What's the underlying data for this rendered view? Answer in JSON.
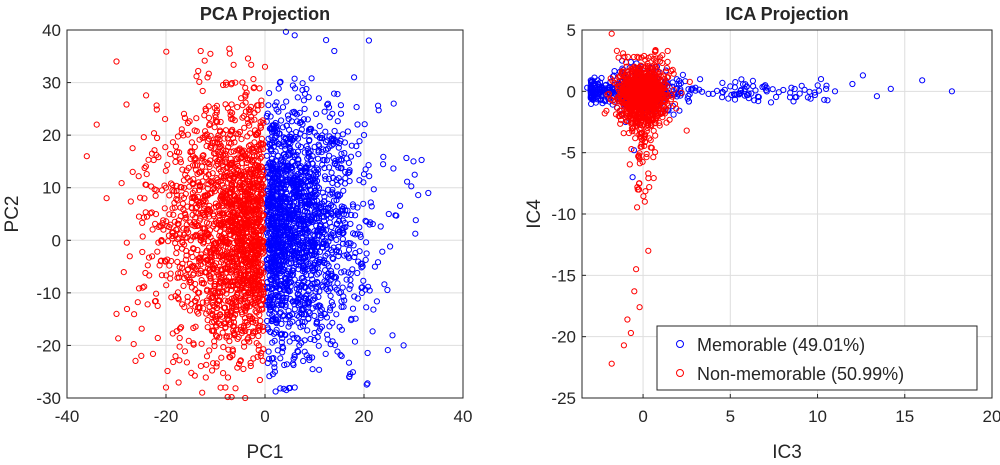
{
  "chart_data": [
    {
      "type": "scatter",
      "title": "PCA Projection",
      "xlabel": "PC1",
      "ylabel": "PC2",
      "xlim": [
        -40,
        40
      ],
      "ylim": [
        -30,
        40
      ],
      "xticks": [
        -40,
        -20,
        0,
        20,
        40
      ],
      "yticks": [
        -30,
        -20,
        -10,
        0,
        10,
        20,
        30,
        40
      ],
      "grid": true,
      "series": [
        {
          "name": "Memorable (49.01%)",
          "color": "#0000ff",
          "marker": "circle-open",
          "description_points": [
            [
              6,
              39
            ],
            [
              21,
              38
            ],
            [
              14,
              36
            ],
            [
              18,
              31
            ],
            [
              26,
              26
            ],
            [
              30,
              15
            ],
            [
              33,
              9
            ],
            [
              28,
              -20
            ],
            [
              17,
              -26
            ],
            [
              6,
              -28
            ],
            [
              2,
              -25
            ],
            [
              25,
              5
            ],
            [
              10,
              0
            ],
            [
              15,
              -10
            ],
            [
              20,
              20
            ],
            [
              8,
              25
            ],
            [
              3,
              30
            ]
          ]
        },
        {
          "name": "Non-memorable (50.99%)",
          "color": "#ff0000",
          "marker": "circle-open",
          "description_points": [
            [
              -30,
              34
            ],
            [
              -13,
              36
            ],
            [
              -34,
              22
            ],
            [
              -36,
              16
            ],
            [
              -32,
              8
            ],
            [
              -30,
              -14
            ],
            [
              -25,
              -22
            ],
            [
              -20,
              -28
            ],
            [
              -8,
              -28
            ],
            [
              -4,
              -30
            ],
            [
              -12,
              25
            ],
            [
              -20,
              10
            ],
            [
              -15,
              0
            ],
            [
              -10,
              -15
            ],
            [
              0,
              33
            ],
            [
              -6,
              30
            ]
          ]
        }
      ]
    },
    {
      "type": "scatter",
      "title": "ICA Projection",
      "xlabel": "IC3",
      "ylabel": "IC4",
      "xlim": [
        -3.5,
        20
      ],
      "ylim": [
        -25,
        5
      ],
      "xticks": [
        0,
        5,
        10,
        15,
        20
      ],
      "yticks": [
        -25,
        -20,
        -15,
        -10,
        -5,
        0,
        5
      ],
      "grid": true,
      "legend": "bottom-right",
      "series": [
        {
          "name": "Memorable (49.01%)",
          "color": "#0000ff",
          "marker": "circle-open",
          "description_points": [
            [
              17.7,
              0.0
            ],
            [
              16.0,
              0.9
            ],
            [
              14.2,
              0.2
            ],
            [
              13.4,
              -0.4
            ],
            [
              12.6,
              1.3
            ],
            [
              12.0,
              0.6
            ],
            [
              11.0,
              0.0
            ],
            [
              10.2,
              1.0
            ],
            [
              9.6,
              -0.6
            ],
            [
              8.5,
              0.3
            ],
            [
              7.0,
              0.5
            ],
            [
              6.0,
              -0.3
            ],
            [
              5.0,
              0.4
            ],
            [
              4.0,
              -0.2
            ],
            [
              3.0,
              0.3
            ],
            [
              -3.2,
              0.3
            ],
            [
              -2.6,
              0.9
            ],
            [
              -2.0,
              -0.6
            ],
            [
              -1.0,
              -2.5
            ],
            [
              0.5,
              -1.5
            ],
            [
              -0.6,
              -7.0
            ],
            [
              -1.2,
              2.5
            ],
            [
              0.8,
              2.0
            ]
          ]
        },
        {
          "name": "Non-memorable (50.99%)",
          "color": "#ff0000",
          "marker": "circle-open",
          "description_points": [
            [
              -1.8,
              4.7
            ],
            [
              -1.5,
              3.3
            ],
            [
              -0.3,
              -8.0
            ],
            [
              0.1,
              -9.0
            ],
            [
              0.3,
              -13.0
            ],
            [
              -0.4,
              -14.5
            ],
            [
              -0.5,
              -16.3
            ],
            [
              -0.2,
              -17.6
            ],
            [
              -0.9,
              -18.6
            ],
            [
              -0.7,
              -19.7
            ],
            [
              -1.1,
              -20.7
            ],
            [
              -1.8,
              -22.2
            ],
            [
              2.5,
              -3.2
            ],
            [
              1.9,
              -1.4
            ],
            [
              -2.2,
              -1.8
            ],
            [
              0.5,
              -4.6
            ],
            [
              -0.2,
              -5.5
            ]
          ]
        }
      ]
    }
  ]
}
